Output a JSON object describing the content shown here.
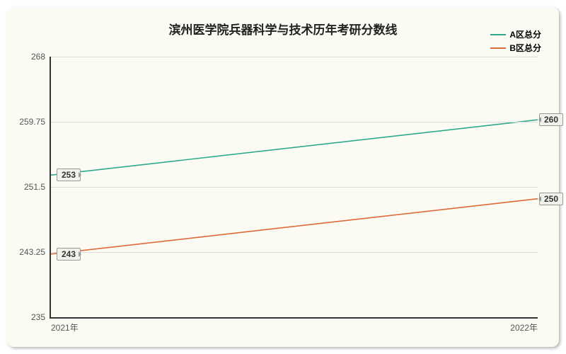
{
  "chart": {
    "type": "line",
    "title": "滨州医学院兵器科学与技术历年考研分数线",
    "title_fontsize": 17,
    "background_color": "#fbfbf4",
    "grid_color": "#dddddd",
    "axis_color": "#333333",
    "font_family": "Microsoft YaHei, Arial, sans-serif",
    "ylim": [
      235,
      268
    ],
    "yticks": [
      235,
      243.25,
      251.5,
      259.75,
      268
    ],
    "ytick_labels": [
      "235",
      "243.25",
      "251.5",
      "259.75",
      "268"
    ],
    "ytick_fontsize": 12,
    "xticks": [
      "2021年",
      "2022年"
    ],
    "xtick_fontsize": 12,
    "legend": {
      "position": "top-right",
      "fontsize": 12,
      "items": [
        {
          "label": "A区总分",
          "color": "#2fa98c"
        },
        {
          "label": "B区总分",
          "color": "#e06a3b"
        }
      ]
    },
    "series": [
      {
        "name": "A区总分",
        "color": "#2fa98c",
        "line_width": 1.6,
        "data": [
          {
            "x": "2021年",
            "y": 253,
            "callout": "253",
            "callout_side": "left"
          },
          {
            "x": "2022年",
            "y": 260,
            "callout": "260",
            "callout_side": "right"
          }
        ]
      },
      {
        "name": "B区总分",
        "color": "#e06a3b",
        "line_width": 1.6,
        "data": [
          {
            "x": "2021年",
            "y": 243,
            "callout": "243",
            "callout_side": "left"
          },
          {
            "x": "2022年",
            "y": 250,
            "callout": "250",
            "callout_side": "right"
          }
        ]
      }
    ],
    "callout_fontsize": 12,
    "callout_bg": "#f2f2ea",
    "callout_border": "#999999"
  }
}
